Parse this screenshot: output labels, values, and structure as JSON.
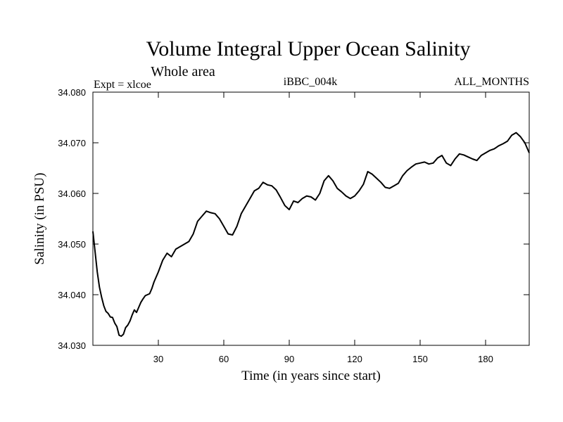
{
  "chart_data": {
    "type": "line",
    "title": "Volume Integral Upper Ocean Salinity",
    "subtitle": "Whole area",
    "header_left": "Expt = xlcoe",
    "header_center": "iBBC_004k",
    "header_right": "ALL_MONTHS",
    "xlabel": "Time (in years since start)",
    "ylabel": "Salinity (in PSU)",
    "xlim": [
      0,
      200
    ],
    "ylim": [
      34.03,
      34.08
    ],
    "xticks": [
      30,
      60,
      90,
      120,
      150,
      180
    ],
    "yticks": [
      "34.030",
      "34.040",
      "34.050",
      "34.060",
      "34.070",
      "34.080"
    ],
    "grid": false,
    "series": [
      {
        "name": "Salinity",
        "x": [
          0,
          1,
          2,
          3,
          4,
          5,
          6,
          7,
          8,
          9,
          10,
          11,
          12,
          13,
          14,
          15,
          16,
          17,
          18,
          19,
          20,
          21,
          22,
          23,
          24,
          25,
          26,
          27,
          28,
          30,
          32,
          34,
          36,
          38,
          40,
          42,
          44,
          46,
          48,
          50,
          52,
          54,
          56,
          58,
          60,
          62,
          64,
          66,
          68,
          70,
          72,
          74,
          76,
          78,
          80,
          82,
          84,
          86,
          88,
          90,
          92,
          94,
          96,
          98,
          100,
          102,
          104,
          106,
          108,
          110,
          112,
          114,
          116,
          118,
          120,
          122,
          124,
          126,
          128,
          130,
          132,
          134,
          136,
          138,
          140,
          142,
          144,
          146,
          148,
          150,
          152,
          154,
          156,
          158,
          160,
          162,
          164,
          166,
          168,
          170,
          172,
          174,
          176,
          178,
          180,
          182,
          184,
          186,
          188,
          190,
          192,
          194,
          196,
          198,
          200
        ],
        "values": [
          34.0525,
          34.0485,
          34.0445,
          34.0415,
          34.0395,
          34.0378,
          34.0367,
          34.0363,
          34.0356,
          34.0355,
          34.0344,
          34.0337,
          34.032,
          34.0318,
          34.0322,
          34.0335,
          34.034,
          34.0348,
          34.036,
          34.037,
          34.0365,
          34.0375,
          34.0385,
          34.0392,
          34.0398,
          34.04,
          34.0402,
          34.0412,
          34.0425,
          34.0445,
          34.0468,
          34.0482,
          34.0475,
          34.049,
          34.0495,
          34.05,
          34.0505,
          34.052,
          34.0545,
          34.0555,
          34.0565,
          34.0562,
          34.056,
          34.055,
          34.0535,
          34.052,
          34.0518,
          34.0535,
          34.056,
          34.0575,
          34.059,
          34.0605,
          34.061,
          34.0622,
          34.0617,
          34.0615,
          34.0607,
          34.0592,
          34.0576,
          34.0568,
          34.0585,
          34.0582,
          34.059,
          34.0595,
          34.0593,
          34.0587,
          34.06,
          34.0625,
          34.0635,
          34.0625,
          34.061,
          34.0603,
          34.0595,
          34.059,
          34.0595,
          34.0605,
          34.0618,
          34.0643,
          34.0638,
          34.063,
          34.0622,
          34.0612,
          34.061,
          34.0615,
          34.062,
          34.0635,
          34.0645,
          34.0652,
          34.0658,
          34.066,
          34.0662,
          34.0658,
          34.066,
          34.067,
          34.0675,
          34.066,
          34.0655,
          34.0668,
          34.0678,
          34.0676,
          34.0672,
          34.0668,
          34.0665,
          34.0675,
          34.068,
          34.0685,
          34.0688,
          34.0694,
          34.0698,
          34.0703,
          34.0715,
          34.072,
          34.0712,
          34.07,
          34.068
        ]
      }
    ]
  }
}
